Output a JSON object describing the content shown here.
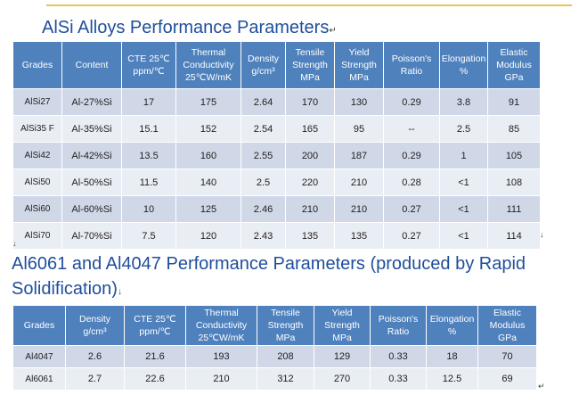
{
  "section1": {
    "title": "AlSi Alloys Performance Parameters",
    "paragraph_mark": "↵",
    "headers": [
      "Grades",
      "Content",
      "CTE 25℃ ppm/℃",
      "Thermal Conductivity 25℃W/mK",
      "Density g/cm³",
      "Tensile Strength MPa",
      "Yield Strength MPa",
      "Poisson's Ratio",
      "Elongation %",
      "Elastic Modulus GPa"
    ],
    "rows": [
      [
        "AlSi27",
        "Al-27%Si",
        "17",
        "175",
        "2.64",
        "170",
        "130",
        "0.29",
        "3.8",
        "91"
      ],
      [
        "AlSi35 F",
        "Al-35%Si",
        "15.1",
        "152",
        "2.54",
        "165",
        "95",
        "--",
        "2.5",
        "85"
      ],
      [
        "AlSi42",
        "Al-42%Si",
        "13.5",
        "160",
        "2.55",
        "200",
        "187",
        "0.29",
        "1",
        "105"
      ],
      [
        "AlSi50",
        "Al-50%Si",
        "11.5",
        "140",
        "2.5",
        "220",
        "210",
        "0.28",
        "<1",
        "108"
      ],
      [
        "AlSi60",
        "Al-60%Si",
        "10",
        "125",
        "2.46",
        "210",
        "210",
        "0.27",
        "<1",
        "111"
      ],
      [
        "AlSi70",
        "Al-70%Si",
        "7.5",
        "120",
        "2.43",
        "135",
        "135",
        "0.27",
        "<1",
        "114"
      ]
    ]
  },
  "section2": {
    "title": "Al6061 and Al4047 Performance Parameters (produced by Rapid Solidification)",
    "paragraph_mark": "↓",
    "headers": [
      "Grades",
      "Density g/cm³",
      "CTE 25℃ ppm/℃",
      "Thermal Conductivity 25℃W/mK",
      "Tensile Strength MPa",
      "Yield Strength MPa",
      "Poisson's Ratio",
      "Elongation %",
      "Elastic Modulus GPa"
    ],
    "rows": [
      [
        "Al4047",
        "2.6",
        "21.6",
        "193",
        "208",
        "129",
        "0.33",
        "18",
        "70"
      ],
      [
        "Al6061",
        "2.7",
        "22.6",
        "210",
        "312",
        "270",
        "0.33",
        "12.5",
        "69"
      ]
    ]
  },
  "marks": {
    "after_table1_left": "↓",
    "after_table1_right": "↓",
    "after_table2_right": "↵"
  }
}
